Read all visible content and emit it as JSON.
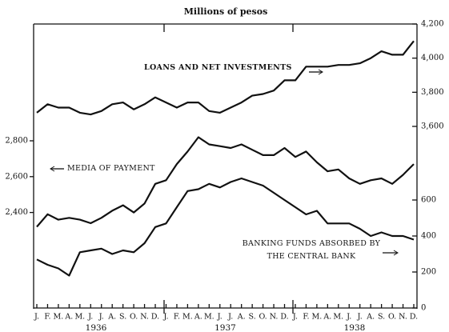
{
  "chart_data": {
    "type": "line",
    "title": "Millions of pesos",
    "categories": [
      "J.",
      "F.",
      "M.",
      "A.",
      "M.",
      "J.",
      "J.",
      "A.",
      "S.",
      "O.",
      "N.",
      "D.",
      "J.",
      "F.",
      "M.",
      "A.",
      "M.",
      "J.",
      "J.",
      "A.",
      "S.",
      "O.",
      "N.",
      "D.",
      "J.",
      "F.",
      "M.",
      "A.",
      "M.",
      "J.",
      "J.",
      "A.",
      "S.",
      "O.",
      "N.",
      "D."
    ],
    "years": [
      "1936",
      "1937",
      "1938"
    ],
    "ylim": [
      2300,
      2800
    ],
    "yticks": [
      {
        "value": 2400,
        "label": "2,400"
      },
      {
        "value": 2600,
        "label": "2,600"
      },
      {
        "value": 2800,
        "label": "2,800"
      }
    ],
    "y2lim": [
      0,
      700
    ],
    "y2ticks": [
      0,
      200,
      400,
      600
    ],
    "y3lim": [
      3600,
      4200
    ],
    "y3ticks": [
      {
        "value": 3600,
        "label": "3,600"
      },
      {
        "value": 3800,
        "label": "3,800"
      },
      {
        "value": 4000,
        "label": "4,000"
      },
      {
        "value": 4200,
        "label": "4,200"
      }
    ],
    "series": [
      {
        "name": "LOANS AND NET INVESTMENTS",
        "color": "#111111",
        "axis": "y3",
        "values": [
          3680,
          3730,
          3710,
          3710,
          3680,
          3670,
          3690,
          3730,
          3740,
          3700,
          3730,
          3770,
          3740,
          3710,
          3740,
          3740,
          3690,
          3680,
          3710,
          3740,
          3780,
          3790,
          3810,
          3870,
          3870,
          3950,
          3950,
          3950,
          3960,
          3960,
          3970,
          4000,
          4040,
          4020,
          4020,
          4100
        ]
      },
      {
        "name": "MEDIA OF PAYMENT",
        "color": "#111111",
        "axis": "y",
        "values": [
          2320,
          2390,
          2360,
          2370,
          2360,
          2340,
          2370,
          2410,
          2440,
          2400,
          2450,
          2560,
          2580,
          2670,
          2740,
          2820,
          2780,
          2770,
          2760,
          2780,
          2750,
          2720,
          2720,
          2760,
          2710,
          2740,
          2680,
          2630,
          2640,
          2590,
          2560,
          2580,
          2590,
          2560,
          2610,
          2670
        ]
      },
      {
        "name": "BANKING FUNDS ABSORBED BY THE CENTRAL BANK",
        "color": "#111111",
        "axis": "y2",
        "values": [
          270,
          240,
          220,
          180,
          310,
          320,
          330,
          300,
          320,
          310,
          360,
          450,
          470,
          560,
          650,
          660,
          690,
          670,
          700,
          720,
          700,
          680,
          640,
          600,
          560,
          520,
          540,
          470,
          470,
          470,
          440,
          400,
          420,
          400,
          400,
          380
        ]
      }
    ]
  }
}
